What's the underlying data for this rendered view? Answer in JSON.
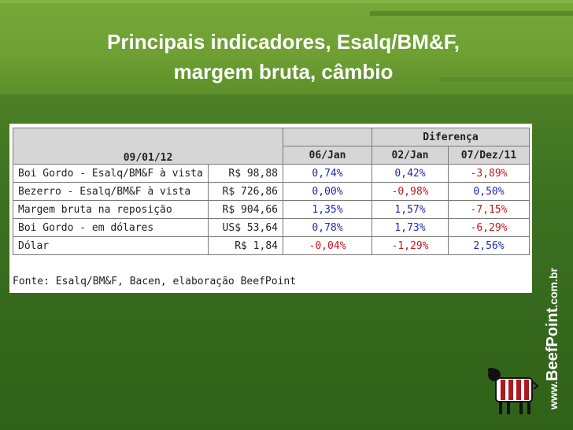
{
  "slide": {
    "title_line1": "Principais indicadores, Esalq/BM&F,",
    "title_line2": "margem bruta, câmbio"
  },
  "table": {
    "group_header": "Diferença",
    "date_header": "09/01/12",
    "columns": [
      "06/Jan",
      "02/Jan",
      "07/Dez/11"
    ],
    "rows": [
      {
        "label": "Boi Gordo - Esalq/BM&F à vista",
        "value": "R$ 98,88",
        "d1": "0,74%",
        "d2": "0,42%",
        "d3": "-3,89%"
      },
      {
        "label": "Bezerro - Esalq/BM&F à vista",
        "value": "R$ 726,86",
        "d1": "0,00%",
        "d2": "-0,98%",
        "d3": "0,50%"
      },
      {
        "label": "Margem bruta na reposição",
        "value": "R$ 904,66",
        "d1": "1,35%",
        "d2": "1,57%",
        "d3": "-7,15%"
      },
      {
        "label": "Boi Gordo - em dólares",
        "value": "US$ 53,64",
        "d1": "0,78%",
        "d2": "1,73%",
        "d3": "-6,29%"
      },
      {
        "label": "Dólar",
        "value": "R$ 1,84",
        "d1": "-0,04%",
        "d2": "-1,29%",
        "d3": "2,56%"
      }
    ],
    "source": "Fonte: Esalq/BM&F, Bacen, elaboração BeefPoint"
  },
  "brand": {
    "prefix": "www.",
    "name": "BeefPoint",
    "suffix": ".com.br"
  },
  "colors": {
    "positive": "#1f2bb5",
    "negative": "#c8141a",
    "background": "#2f6a1c"
  }
}
